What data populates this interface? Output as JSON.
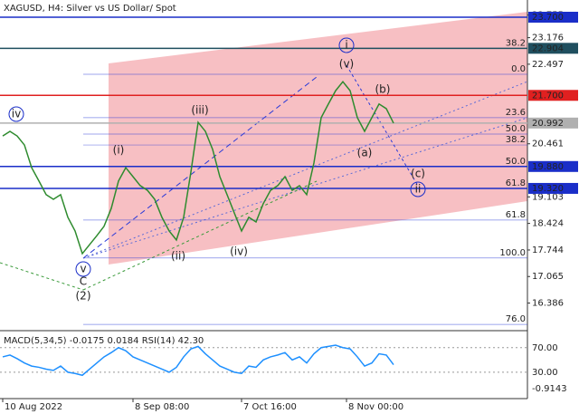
{
  "chart_data": {
    "type": "line",
    "title": "XAGUSD, H4:  Silver vs US Dollar/ Spot",
    "xticks": [
      {
        "value": 0,
        "label": "10 Aug 2022"
      },
      {
        "value": 18,
        "label": "8 Sep 08:00"
      },
      {
        "value": 33,
        "label": "7 Oct 16:00"
      },
      {
        "value": 47.5,
        "label": "8 Nov 00:00"
      }
    ],
    "xlim": [
      0,
      72
    ],
    "ylim": [
      15.68,
      24.14
    ],
    "yticks": [
      23.755,
      23.176,
      22.497,
      20.461,
      19.103,
      18.424,
      17.744,
      17.065,
      16.386
    ],
    "series": [
      {
        "name": "XAGUSD",
        "color": "#2e8b2e",
        "values": [
          20.66,
          20.78,
          20.66,
          20.43,
          19.85,
          19.51,
          19.16,
          19.04,
          19.16,
          18.58,
          18.23,
          17.65,
          17.88,
          18.11,
          18.35,
          18.81,
          19.51,
          19.85,
          19.62,
          19.39,
          19.27,
          19.04,
          18.58,
          18.23,
          18.0,
          18.58,
          19.74,
          21.01,
          20.78,
          20.32,
          19.62,
          19.16,
          18.69,
          18.23,
          18.58,
          18.46,
          18.93,
          19.27,
          19.39,
          19.62,
          19.27,
          19.39,
          19.16,
          19.97,
          21.13,
          21.48,
          21.82,
          22.05,
          21.82,
          21.13,
          20.78,
          21.13,
          21.48,
          21.36,
          20.99
        ]
      }
    ],
    "price_levels": [
      {
        "value": 23.7,
        "label": "23.700",
        "color": "#1a2ec8"
      },
      {
        "value": 22.904,
        "label": "22.904",
        "color": "#1f4f5f"
      },
      {
        "value": 21.7,
        "label": "21.700",
        "color": "#e02020"
      },
      {
        "value": 20.992,
        "label": "20.992",
        "color": "#b0b0b0"
      },
      {
        "value": 19.88,
        "label": "19.880",
        "color": "#1a2ec8"
      },
      {
        "value": 19.32,
        "label": "19.320",
        "color": "#1a2ec8"
      }
    ],
    "fib_levels": [
      {
        "label": "38.2",
        "price": 22.904
      },
      {
        "label": "0.0",
        "price": 22.24
      },
      {
        "label": "23.6",
        "price": 21.13
      },
      {
        "label": "50.0",
        "price": 20.71
      },
      {
        "label": "38.2",
        "price": 20.43
      },
      {
        "label": "50.0",
        "price": 19.88
      },
      {
        "label": "61.8",
        "price": 19.32
      },
      {
        "label": "61.8",
        "price": 18.51
      },
      {
        "label": "100.0",
        "price": 17.54
      },
      {
        "label": "76.0",
        "price": 15.84
      }
    ],
    "wave_labels": [
      "iv",
      "(i)",
      "(iii)",
      "(ii)",
      "(iv)",
      "v",
      "C",
      "(2)",
      "i",
      "(v)",
      "(b)",
      "(a)",
      "(c)",
      "ii"
    ],
    "indicator": {
      "title": "MACD(5,34,5) -0.0175 0.0184 RSI(14) 42.30",
      "color": "#1e90ff",
      "ylim": [
        -13,
        97.7
      ],
      "yticks": [
        {
          "value": 70,
          "label": "70.00"
        },
        {
          "value": 30,
          "label": "30.00"
        }
      ],
      "macd_label": "-0.9143",
      "values": [
        55,
        58,
        52,
        45,
        40,
        38,
        35,
        33,
        40,
        30,
        28,
        25,
        35,
        45,
        55,
        62,
        70,
        65,
        55,
        50,
        45,
        40,
        35,
        30,
        38,
        55,
        68,
        72,
        60,
        50,
        40,
        35,
        30,
        28,
        40,
        38,
        50,
        55,
        58,
        62,
        50,
        55,
        45,
        60,
        70,
        72,
        74,
        70,
        68,
        55,
        40,
        45,
        60,
        58,
        42.3
      ]
    }
  }
}
